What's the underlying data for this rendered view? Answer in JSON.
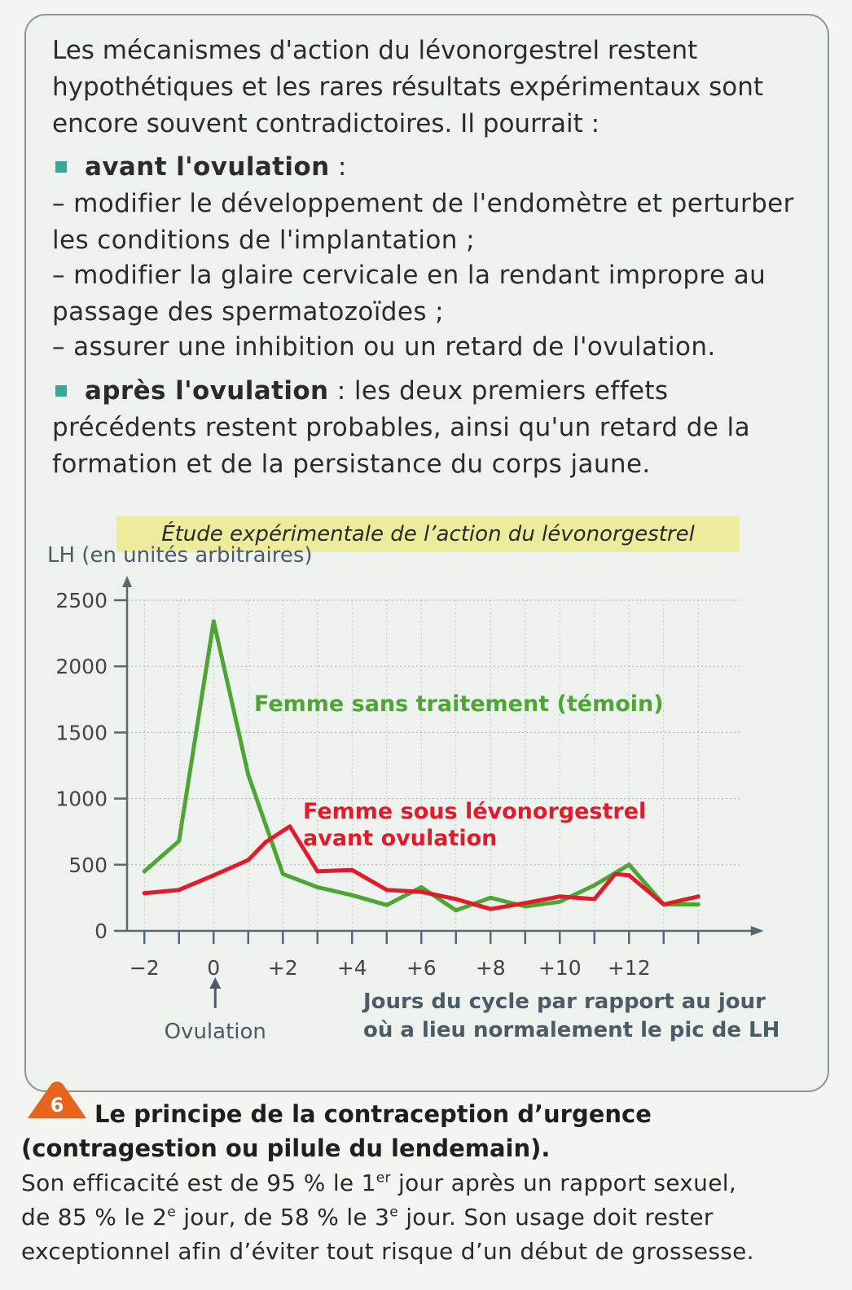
{
  "intro": {
    "paragraph": "Les mécanismes d'action du lévonorgestrel restent hypothétiques et les rares résultats expérimentaux sont encore souvent contradictoires. Il pourrait :"
  },
  "before": {
    "heading": "avant l'ovulation",
    "colon": " :",
    "item1": "– modifier le développement de l'endomètre et perturber les conditions de l'implantation ;",
    "item2": "– modifier la glaire cervicale en la rendant impropre au passage des spermatozoïdes ;",
    "item3": "– assurer une inhibition ou un retard de l'ovulation."
  },
  "after": {
    "heading": "après l'ovulation",
    "text": " : les deux premiers effets précédents restent probables, ainsi qu'un retard de la formation et de la persistance du corps jaune."
  },
  "colors": {
    "control": "#4fa534",
    "treated": "#e21b2b",
    "panel_bg": "#eef2ee",
    "title_bg": "#ecec9c",
    "badge": "#e8641e",
    "bullet": "#3aa899"
  },
  "chart_data": {
    "type": "line",
    "title": "Étude expérimentale de l’action du lévonorgestrel",
    "ylabel": "LH (en unités arbitraires)",
    "xlabel_line1": "Jours du cycle par rapport au jour",
    "xlabel_line2": "où a lieu normalement le pic de LH",
    "annotation": "Ovulation",
    "ylim": [
      0,
      2500
    ],
    "xlim": [
      -2.5,
      15
    ],
    "yticks": [
      0,
      500,
      1000,
      1500,
      2000,
      2500
    ],
    "xtick_labels": [
      "−2",
      "0",
      "+2",
      "+4",
      "+6",
      "+8",
      "+10",
      "+12"
    ],
    "xtick_values": [
      -2,
      0,
      2,
      4,
      6,
      8,
      10,
      12
    ],
    "grid": true,
    "series": [
      {
        "name_line1": "Femme sans traitement (témoin)",
        "name_line2": "",
        "color": "#4fa534",
        "x": [
          -2,
          -1,
          0,
          1,
          2,
          3,
          4,
          5,
          6,
          7,
          8,
          9,
          10,
          11,
          12,
          13,
          14
        ],
        "y": [
          450,
          680,
          2340,
          1180,
          430,
          330,
          270,
          195,
          330,
          155,
          250,
          185,
          220,
          345,
          500,
          200,
          200
        ]
      },
      {
        "name_line1": "Femme sous lévonorgestrel",
        "name_line2": "avant ovulation",
        "color": "#e21b2b",
        "x": [
          -2,
          -1,
          0,
          1,
          1.5,
          2.2,
          3,
          4,
          5,
          6,
          7,
          8,
          9,
          10,
          11,
          11.6,
          12,
          13,
          14
        ],
        "y": [
          285,
          310,
          420,
          535,
          670,
          790,
          450,
          460,
          310,
          295,
          240,
          165,
          210,
          260,
          240,
          430,
          420,
          200,
          260
        ]
      }
    ]
  },
  "caption": {
    "number": "6",
    "title_line1": "Le principe de la contraception d’urgence",
    "title_line2": "(contragestion ou pilule du lendemain).",
    "body_a": "Son efficacité est de 95 % le 1",
    "sup1": "er",
    "body_b": " jour après un rapport sexuel,",
    "body_c": "de 85 % le 2",
    "sup2": "e",
    "body_d": " jour, de 58 % le 3",
    "sup3": "e",
    "body_e": " jour. Son usage doit rester",
    "body_f": "exceptionnel afin d’éviter tout risque d’un début de grossesse."
  }
}
